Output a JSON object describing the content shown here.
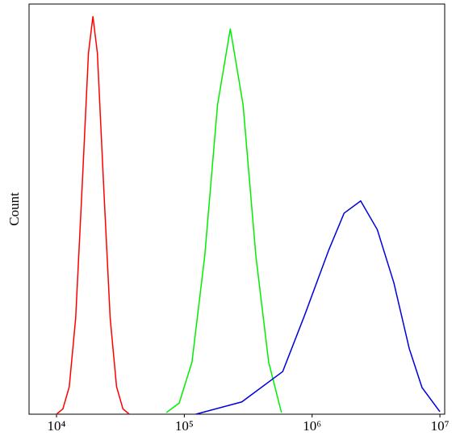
{
  "chart_data": {
    "type": "line",
    "y_label": "Count",
    "xscale": "log",
    "xlim": [
      6100,
      10900000
    ],
    "ylim": [
      0,
      100
    ],
    "xticks": [
      {
        "value": 10000,
        "label": "10⁴"
      },
      {
        "value": 100000,
        "label": "10⁵"
      },
      {
        "value": 1000000,
        "label": "10⁶"
      },
      {
        "value": 10000000,
        "label": "10⁷"
      }
    ],
    "series": [
      {
        "color": "#ff0000",
        "x": [
          10000,
          11220,
          12589,
          14125,
          15849,
          17783,
          19275,
          20893,
          23442,
          26303,
          29512,
          33113,
          37154
        ],
        "values": [
          0,
          1.3,
          6.7,
          23.4,
          55,
          88,
          97,
          88,
          55,
          23.4,
          6.7,
          1.3,
          0
        ]
      },
      {
        "color": "#00ee00",
        "x": [
          72444,
          91201,
          114815,
          144544,
          181970,
          229087,
          288403,
          363078,
          457088,
          575440
        ],
        "values": [
          0.4,
          2.7,
          12.7,
          38.6,
          75.4,
          94,
          75.4,
          38.6,
          12.7,
          0.4
        ]
      },
      {
        "color": "#0000dd",
        "x": [
          123027,
          281838,
          588844,
          870964,
          1348963,
          1778279,
          2398833,
          3235937,
          4365158,
          5754399,
          7244360,
          10000000
        ],
        "values": [
          0,
          3,
          10.4,
          24,
          40,
          49,
          52,
          45,
          32,
          16,
          6.5,
          0.6
        ]
      }
    ]
  }
}
